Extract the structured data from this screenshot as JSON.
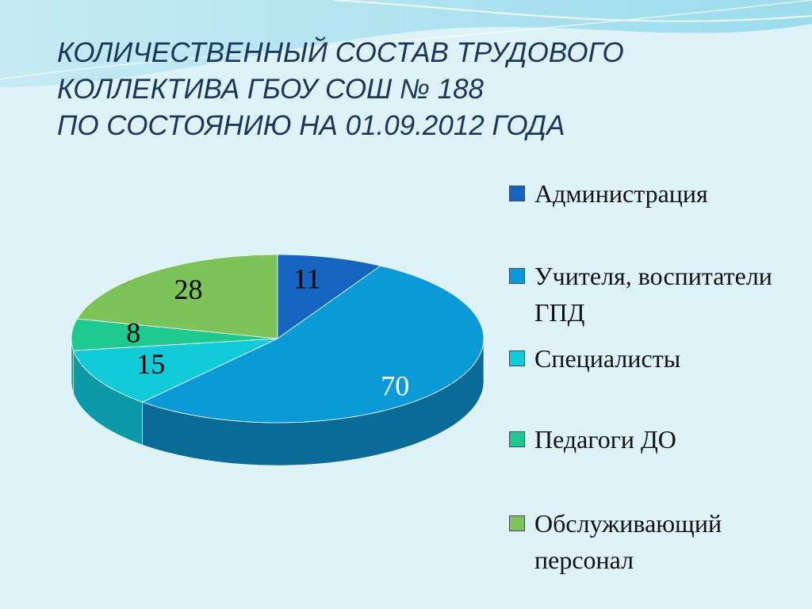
{
  "chart_data": {
    "type": "pie3d",
    "title": [
      "КОЛИЧЕСТВЕННЫЙ СОСТАВ ТРУДОВОГО",
      "КОЛЛЕКТИВА ГБОУ СОШ № 188",
      "ПО СОСТОЯНИЮ НА 01.09.2012 ГОДА"
    ],
    "categories": [
      "Администрация",
      "Учителя, воспитатели ГПД",
      "Специалисты",
      "Педагоги ДО",
      "Обслуживающий персонал"
    ],
    "values": [
      11,
      70,
      15,
      8,
      28
    ],
    "colors": [
      "#1565c0",
      "#0a9ad8",
      "#12cbd9",
      "#1ec98f",
      "#7cc35a"
    ],
    "side_colors": [
      "#0d3f78",
      "#0a6a98",
      "#0c9aa8",
      "#139a6c",
      "#5a9a3e"
    ]
  }
}
